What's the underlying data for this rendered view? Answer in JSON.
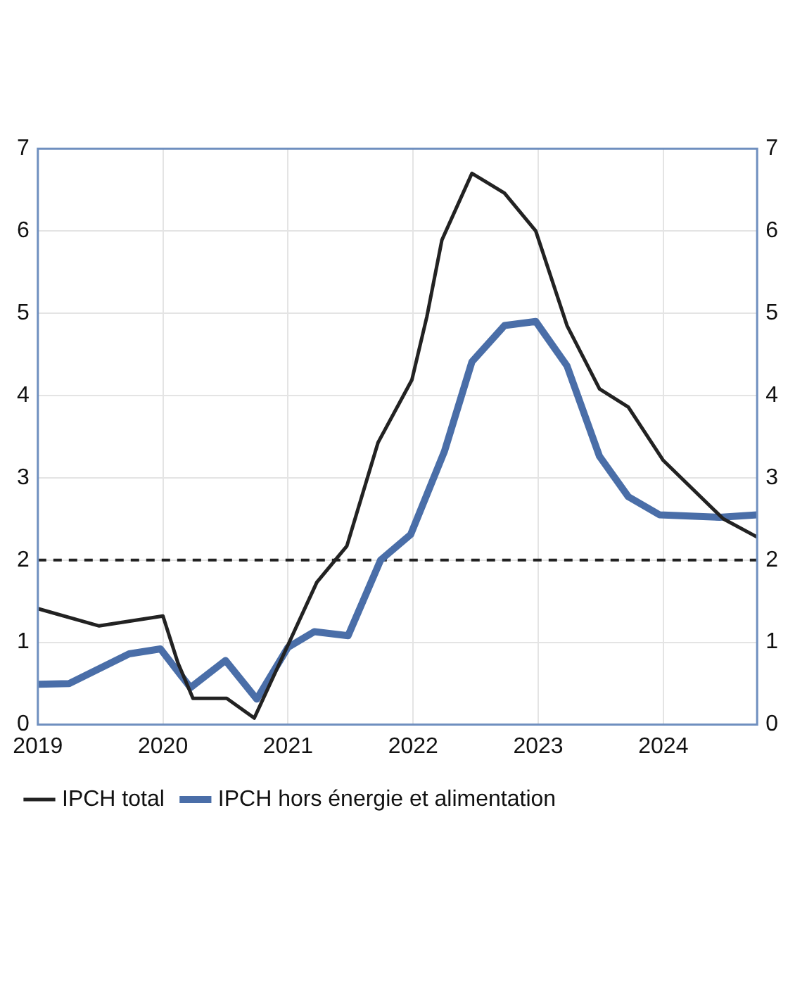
{
  "chart_data": {
    "type": "line",
    "series": [
      {
        "name": "IPCH total",
        "color": "#222222",
        "x": [
          2019.0,
          2019.49,
          2020.0,
          2020.12,
          2020.24,
          2020.51,
          2020.73,
          2021.0,
          2021.23,
          2021.47,
          2021.72,
          2021.99,
          2022.11,
          2022.23,
          2022.47,
          2022.73,
          2022.98,
          2023.23,
          2023.49,
          2023.72,
          2024.0,
          2024.48,
          2024.75
        ],
        "values": [
          1.41,
          1.2,
          1.32,
          0.75,
          0.32,
          0.32,
          0.08,
          0.97,
          1.73,
          2.17,
          3.43,
          4.19,
          4.96,
          5.89,
          6.7,
          6.46,
          6.0,
          4.85,
          4.08,
          3.86,
          3.21,
          2.5,
          2.28
        ]
      },
      {
        "name": "IPCH hors énergie et alimentation",
        "color": "#4a6ea8",
        "x": [
          2019.0,
          2019.25,
          2019.73,
          2019.98,
          2020.22,
          2020.5,
          2020.75,
          2021.0,
          2021.21,
          2021.48,
          2021.74,
          2021.98,
          2022.25,
          2022.47,
          2022.73,
          2022.98,
          2023.23,
          2023.49,
          2023.72,
          2023.97,
          2024.45,
          2024.75
        ],
        "values": [
          0.49,
          0.5,
          0.86,
          0.92,
          0.45,
          0.78,
          0.31,
          0.94,
          1.13,
          1.08,
          2.0,
          2.31,
          3.32,
          4.41,
          4.85,
          4.9,
          4.36,
          3.26,
          2.77,
          2.55,
          2.52,
          2.55
        ]
      }
    ],
    "xlim": [
      2019,
      2024.75
    ],
    "xticks": [
      2019,
      2020,
      2021,
      2022,
      2023,
      2024
    ],
    "ylim": [
      0,
      7
    ],
    "yticks": [
      0,
      1,
      2,
      3,
      4,
      5,
      6,
      7
    ],
    "y2lim": [
      0,
      7
    ],
    "y2ticks": [
      0,
      1,
      2,
      3,
      4,
      5,
      6,
      7
    ],
    "ref_lines": [
      {
        "axis": "y",
        "value": 2,
        "color": "#222222",
        "line_style": "dashed"
      }
    ],
    "grid": true,
    "legend": "bottom",
    "marker": "none",
    "line_style": "solid"
  }
}
